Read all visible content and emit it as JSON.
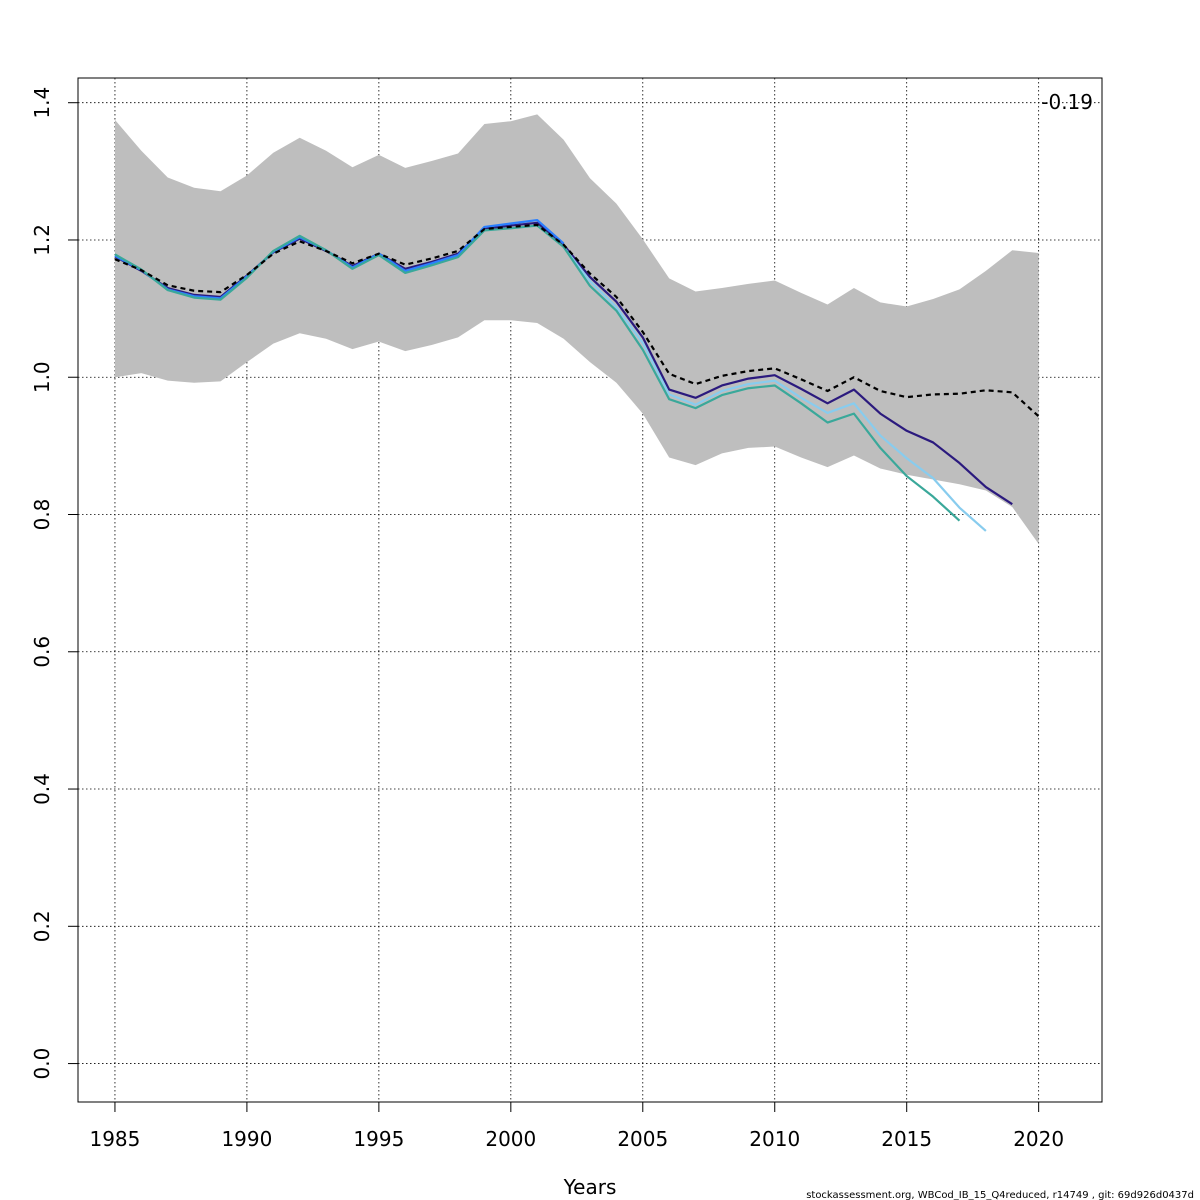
{
  "chart_data": {
    "type": "line",
    "xlabel": "Years",
    "ylabel": "",
    "xlim": [
      1983.6,
      2022.4
    ],
    "ylim": [
      -0.056,
      1.436
    ],
    "x_ticks": [
      1985,
      1990,
      1995,
      2000,
      2005,
      2010,
      2015,
      2020
    ],
    "x_tick_labels": [
      "1985",
      "1990",
      "1995",
      "2000",
      "2005",
      "2010",
      "2015",
      "2020"
    ],
    "y_ticks": [
      0.0,
      0.2,
      0.4,
      0.6,
      0.8,
      1.0,
      1.2,
      1.4
    ],
    "y_tick_labels": [
      "0.0",
      "0.2",
      "0.4",
      "0.6",
      "0.8",
      "1.0",
      "1.2",
      "1.4"
    ],
    "grid": true,
    "annotation": "-0.19",
    "footer": "stockassessment.org, WBCod_IB_15_Q4reduced, r14749 , git: 69d926d0437d",
    "confidence_band": {
      "color": "#bebebe",
      "x": [
        1985,
        1986,
        1987,
        1988,
        1989,
        1990,
        1991,
        1992,
        1993,
        1994,
        1995,
        1996,
        1997,
        1998,
        1999,
        2000,
        2001,
        2002,
        2003,
        2004,
        2005,
        2006,
        2007,
        2008,
        2009,
        2010,
        2011,
        2012,
        2013,
        2014,
        2015,
        2016,
        2017,
        2018,
        2019,
        2020
      ],
      "upper": [
        1.375,
        1.33,
        1.291,
        1.276,
        1.271,
        1.294,
        1.327,
        1.349,
        1.33,
        1.306,
        1.324,
        1.305,
        1.315,
        1.326,
        1.369,
        1.373,
        1.383,
        1.346,
        1.29,
        1.253,
        1.201,
        1.144,
        1.125,
        1.13,
        1.136,
        1.141,
        1.123,
        1.106,
        1.13,
        1.109,
        1.103,
        1.114,
        1.128,
        1.155,
        1.185,
        1.181
      ],
      "lower": [
        1.0,
        1.006,
        0.995,
        0.992,
        0.994,
        1.022,
        1.049,
        1.064,
        1.056,
        1.041,
        1.052,
        1.038,
        1.047,
        1.058,
        1.083,
        1.083,
        1.079,
        1.056,
        1.022,
        0.992,
        0.947,
        0.883,
        0.872,
        0.889,
        0.897,
        0.899,
        0.883,
        0.869,
        0.886,
        0.867,
        0.858,
        0.851,
        0.844,
        0.835,
        0.811,
        0.757
      ]
    },
    "series": [
      {
        "color": "#000000",
        "style": "dashed",
        "x": [
          1985,
          1986,
          1987,
          1988,
          1989,
          1990,
          1991,
          1992,
          1993,
          1994,
          1995,
          1996,
          1997,
          1998,
          1999,
          2000,
          2001,
          2002,
          2003,
          2004,
          2005,
          2006,
          2007,
          2008,
          2009,
          2010,
          2011,
          2012,
          2013,
          2014,
          2015,
          2016,
          2017,
          2018,
          2019,
          2020
        ],
        "values": [
          1.172,
          1.156,
          1.134,
          1.126,
          1.124,
          1.149,
          1.18,
          1.198,
          1.184,
          1.166,
          1.18,
          1.164,
          1.173,
          1.184,
          1.216,
          1.219,
          1.222,
          1.193,
          1.151,
          1.117,
          1.066,
          1.005,
          0.99,
          1.002,
          1.009,
          1.013,
          0.997,
          0.98,
          1.0,
          0.98,
          0.971,
          0.975,
          0.976,
          0.981,
          0.978,
          0.943
        ]
      },
      {
        "color": "#2b1a7e",
        "style": "solid",
        "x": [
          1985,
          1986,
          1987,
          1988,
          1989,
          1990,
          1991,
          1992,
          1993,
          1994,
          1995,
          1996,
          1997,
          1998,
          1999,
          2000,
          2001,
          2002,
          2003,
          2004,
          2005,
          2006,
          2007,
          2008,
          2009,
          2010,
          2011,
          2012,
          2013,
          2014,
          2015,
          2016,
          2017,
          2018,
          2019
        ],
        "values": [
          1.176,
          1.155,
          1.13,
          1.12,
          1.117,
          1.148,
          1.182,
          1.202,
          1.184,
          1.162,
          1.18,
          1.158,
          1.168,
          1.18,
          1.216,
          1.221,
          1.225,
          1.193,
          1.146,
          1.11,
          1.058,
          0.982,
          0.97,
          0.988,
          0.998,
          1.003,
          0.983,
          0.962,
          0.982,
          0.947,
          0.922,
          0.905,
          0.875,
          0.84,
          0.815
        ]
      },
      {
        "color": "#2a7fff",
        "style": "solid",
        "x": [
          1985,
          1986,
          1987,
          1988,
          1989,
          1990,
          1991,
          1992,
          1993,
          1994,
          1995,
          1996,
          1997,
          1998,
          1999,
          2000,
          2001,
          2002
        ],
        "values": [
          1.177,
          1.156,
          1.128,
          1.118,
          1.115,
          1.147,
          1.183,
          1.204,
          1.185,
          1.16,
          1.18,
          1.155,
          1.166,
          1.178,
          1.219,
          1.224,
          1.229,
          1.195
        ]
      },
      {
        "color": "#88ccee",
        "style": "solid",
        "x": [
          2002,
          2003,
          2004,
          2005,
          2006,
          2007,
          2008,
          2009,
          2010,
          2011,
          2012,
          2013,
          2014,
          2015,
          2016,
          2017,
          2018
        ],
        "values": [
          1.19,
          1.14,
          1.102,
          1.05,
          0.975,
          0.96,
          0.98,
          0.99,
          0.995,
          0.97,
          0.948,
          0.962,
          0.915,
          0.882,
          0.853,
          0.81,
          0.776
        ]
      },
      {
        "color": "#3aa89a",
        "style": "solid",
        "x": [
          1985,
          1986,
          1987,
          1988,
          1989,
          1990,
          1991,
          1992,
          1993,
          1994,
          1995,
          1996,
          1997,
          1998,
          1999,
          2000,
          2001,
          2002,
          2003,
          2004,
          2005,
          2006,
          2007,
          2008,
          2009,
          2010,
          2011,
          2012,
          2013,
          2014,
          2015,
          2016,
          2017
        ],
        "values": [
          1.179,
          1.157,
          1.127,
          1.116,
          1.113,
          1.145,
          1.184,
          1.206,
          1.185,
          1.158,
          1.178,
          1.152,
          1.163,
          1.175,
          1.214,
          1.217,
          1.221,
          1.19,
          1.133,
          1.097,
          1.04,
          0.968,
          0.955,
          0.974,
          0.984,
          0.988,
          0.962,
          0.934,
          0.947,
          0.897,
          0.856,
          0.826,
          0.791
        ]
      }
    ]
  }
}
